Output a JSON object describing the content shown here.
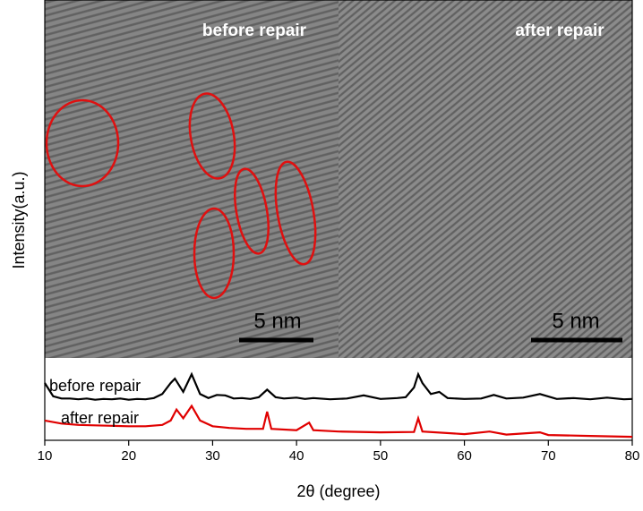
{
  "chart_data": {
    "type": "line",
    "x_label": "2θ (degree)",
    "y_label": "Intensity(a.u.)",
    "xlim": [
      10,
      80
    ],
    "xticks": [
      10,
      20,
      30,
      40,
      50,
      60,
      70,
      80
    ],
    "ylim": [
      0,
      100
    ],
    "series": [
      {
        "name": "before repair",
        "color": "#000000",
        "x": [
          10,
          11,
          12,
          13,
          14,
          15,
          16,
          17,
          18,
          19,
          20,
          21,
          22,
          23,
          24,
          25,
          25.5,
          26.5,
          27.5,
          28.5,
          29.5,
          30.5,
          31.5,
          32.5,
          33.5,
          34.5,
          35.5,
          36.5,
          37.5,
          38.5,
          40,
          41,
          42,
          44,
          46,
          48,
          50,
          52,
          53,
          54,
          54.5,
          55,
          56,
          57,
          58,
          60,
          62,
          63.5,
          65,
          67,
          69,
          71,
          73,
          75,
          77,
          79,
          80
        ],
        "values": [
          13,
          10,
          9.5,
          9.5,
          9.3,
          9.5,
          9.2,
          9.4,
          9.3,
          9.5,
          9.2,
          9.4,
          9.3,
          9.6,
          10.5,
          13,
          14,
          11,
          15,
          10.5,
          9.6,
          10.3,
          10.2,
          9.5,
          9.6,
          9.4,
          9.8,
          11.5,
          9.8,
          9.5,
          9.7,
          9.4,
          9.6,
          9.3,
          9.5,
          10.2,
          9.4,
          9.6,
          9.8,
          12,
          15,
          13,
          10.5,
          11,
          9.6,
          9.4,
          9.5,
          10.3,
          9.5,
          9.7,
          10.5,
          9.4,
          9.6,
          9.3,
          9.7,
          9.3,
          9.4
        ]
      },
      {
        "name": "after repair",
        "color": "#e00000",
        "x": [
          10,
          12,
          14,
          16,
          18,
          20,
          22,
          24,
          25,
          25.7,
          26.5,
          27.5,
          28.5,
          30,
          32,
          34,
          36,
          36.5,
          37,
          40,
          41.5,
          42,
          45,
          50,
          54,
          54.5,
          55,
          60,
          63,
          65,
          69,
          70,
          75,
          80
        ],
        "values": [
          4.5,
          3.8,
          3.5,
          3.4,
          3.3,
          3.2,
          3.2,
          3.5,
          4.5,
          7,
          5,
          7.8,
          4.5,
          3.2,
          2.8,
          2.6,
          2.6,
          6.5,
          2.6,
          2.3,
          4,
          2.3,
          2,
          1.8,
          1.9,
          5,
          2,
          1.4,
          2,
          1.3,
          1.8,
          1.2,
          1,
          0.8
        ]
      }
    ]
  },
  "images": [
    {
      "label": "before repair",
      "scale_bar": "5 nm"
    },
    {
      "label": "after repair",
      "scale_bar": "5 nm"
    }
  ]
}
